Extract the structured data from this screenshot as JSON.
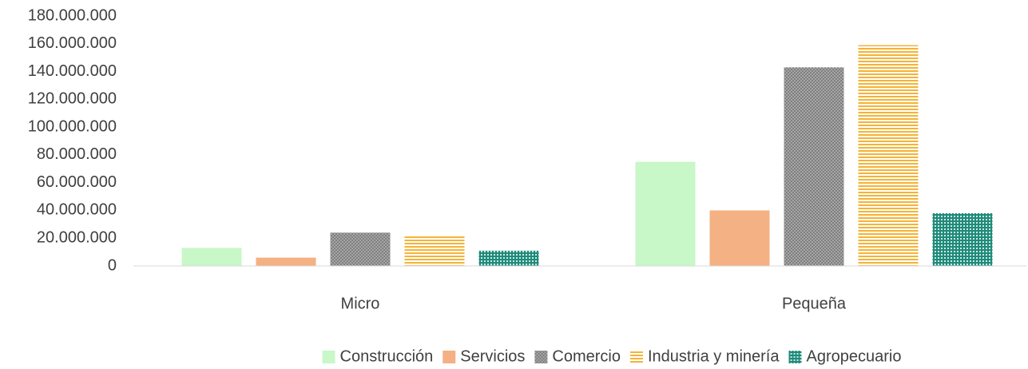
{
  "chart_data": {
    "type": "bar",
    "categories": [
      "Micro",
      "Pequeña"
    ],
    "series": [
      {
        "name": "Construcción",
        "color": "#c8f7c8",
        "values": [
          13000000,
          75000000
        ]
      },
      {
        "name": "Servicios",
        "color": "#f4b183",
        "values": [
          6000000,
          40000000
        ]
      },
      {
        "name": "Comercio",
        "color": "#7f7f7f",
        "pattern": "checker",
        "values": [
          24000000,
          143000000
        ]
      },
      {
        "name": "Industria y minería",
        "color": "#f5b335",
        "pattern": "horizontal",
        "values": [
          22000000,
          159000000
        ]
      },
      {
        "name": "Agropecuario",
        "color": "#1f8a7a",
        "pattern": "grid",
        "values": [
          11000000,
          38000000
        ]
      }
    ],
    "ylim": [
      0,
      180000000
    ],
    "yticks": [
      {
        "value": 0,
        "label": "0"
      },
      {
        "value": 20000000,
        "label": "20.000.000"
      },
      {
        "value": 40000000,
        "label": "40.000.000"
      },
      {
        "value": 60000000,
        "label": "60.000.000"
      },
      {
        "value": 80000000,
        "label": "80.000.000"
      },
      {
        "value": 100000000,
        "label": "100.000.000"
      },
      {
        "value": 120000000,
        "label": "120.000.000"
      },
      {
        "value": 140000000,
        "label": "140.000.000"
      },
      {
        "value": 160000000,
        "label": "160.000.000"
      },
      {
        "value": 180000000,
        "label": "180.000.000"
      }
    ],
    "grid": false,
    "legend": "bottom"
  }
}
